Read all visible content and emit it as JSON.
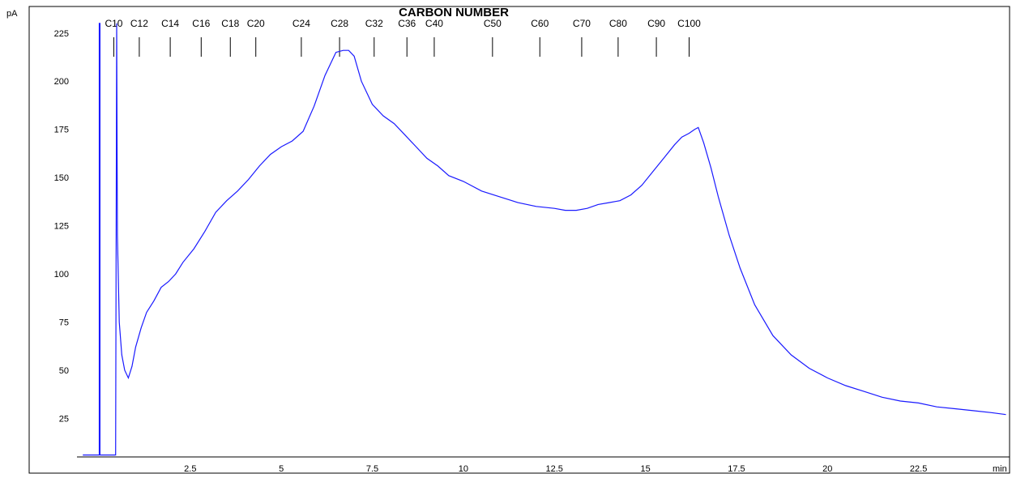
{
  "chart_data": {
    "type": "line",
    "title": "CARBON NUMBER",
    "ylabel": "pA",
    "xlabel": "min",
    "xlim": [
      -0.5,
      25
    ],
    "ylim": [
      5,
      235
    ],
    "x_ticks": [
      2.5,
      5,
      7.5,
      10,
      12.5,
      15,
      17.5,
      20,
      22.5
    ],
    "x_tick_labels": [
      "2.5",
      "5",
      "7.5",
      "10",
      "12.5",
      "15",
      "17.5",
      "20",
      "22.5"
    ],
    "y_ticks": [
      25,
      50,
      75,
      100,
      125,
      150,
      175,
      200,
      225
    ],
    "y_tick_labels": [
      "25",
      "50",
      "75",
      "100",
      "125",
      "150",
      "175",
      "200",
      "225"
    ],
    "grid": false,
    "line_color": "#1a1aff",
    "carbon_markers": [
      {
        "label": "C10",
        "x": 0.4
      },
      {
        "label": "C12",
        "x": 1.1
      },
      {
        "label": "C14",
        "x": 1.95
      },
      {
        "label": "C16",
        "x": 2.8
      },
      {
        "label": "C18",
        "x": 3.6
      },
      {
        "label": "C20",
        "x": 4.3
      },
      {
        "label": "C24",
        "x": 5.55
      },
      {
        "label": "C28",
        "x": 6.6
      },
      {
        "label": "C32",
        "x": 7.55
      },
      {
        "label": "C36",
        "x": 8.45
      },
      {
        "label": "C40",
        "x": 9.2
      },
      {
        "label": "C50",
        "x": 10.8
      },
      {
        "label": "C60",
        "x": 12.1
      },
      {
        "label": "C70",
        "x": 13.25
      },
      {
        "label": "C80",
        "x": 14.25
      },
      {
        "label": "C90",
        "x": 15.3
      },
      {
        "label": "C100",
        "x": 16.2
      }
    ],
    "series": [
      {
        "x": [
          -0.45,
          0.0,
          0.0,
          0.02,
          0.02,
          0.45,
          0.48,
          0.5,
          0.55,
          0.62,
          0.7,
          0.8,
          0.9,
          1.0,
          1.15,
          1.3,
          1.5,
          1.7,
          1.9,
          2.1,
          2.3,
          2.6,
          2.9,
          3.2,
          3.5,
          3.8,
          4.1,
          4.4,
          4.7,
          5.0,
          5.3,
          5.6,
          5.9,
          6.2,
          6.5,
          6.7,
          6.85,
          7.0,
          7.2,
          7.5,
          7.8,
          8.1,
          8.4,
          8.7,
          9.0,
          9.3,
          9.6,
          10.0,
          10.5,
          11.0,
          11.5,
          12.0,
          12.5,
          12.8,
          13.1,
          13.4,
          13.7,
          14.0,
          14.3,
          14.6,
          14.9,
          15.2,
          15.5,
          15.8,
          16.0,
          16.2,
          16.35,
          16.45,
          16.6,
          16.8,
          17.0,
          17.3,
          17.6,
          18.0,
          18.5,
          19.0,
          19.5,
          20.0,
          20.5,
          21.0,
          21.5,
          22.0,
          22.5,
          23.0,
          23.5,
          24.0,
          24.5,
          24.9
        ],
        "y": [
          6,
          6,
          230,
          230,
          6,
          6,
          230,
          120,
          75,
          58,
          50,
          46,
          52,
          62,
          72,
          80,
          86,
          93,
          96,
          100,
          106,
          113,
          122,
          132,
          138,
          143,
          149,
          156,
          162,
          166,
          169,
          174,
          187,
          203,
          215,
          216,
          216,
          213,
          200,
          188,
          182,
          178,
          172,
          166,
          160,
          156,
          151,
          148,
          143,
          140,
          137,
          135,
          134,
          133,
          133,
          134,
          136,
          137,
          138,
          141,
          146,
          153,
          160,
          167,
          171,
          173,
          175,
          176,
          168,
          155,
          140,
          120,
          103,
          84,
          68,
          58,
          51,
          46,
          42,
          39,
          36,
          34,
          33,
          31,
          30,
          29,
          28,
          27
        ]
      }
    ]
  }
}
